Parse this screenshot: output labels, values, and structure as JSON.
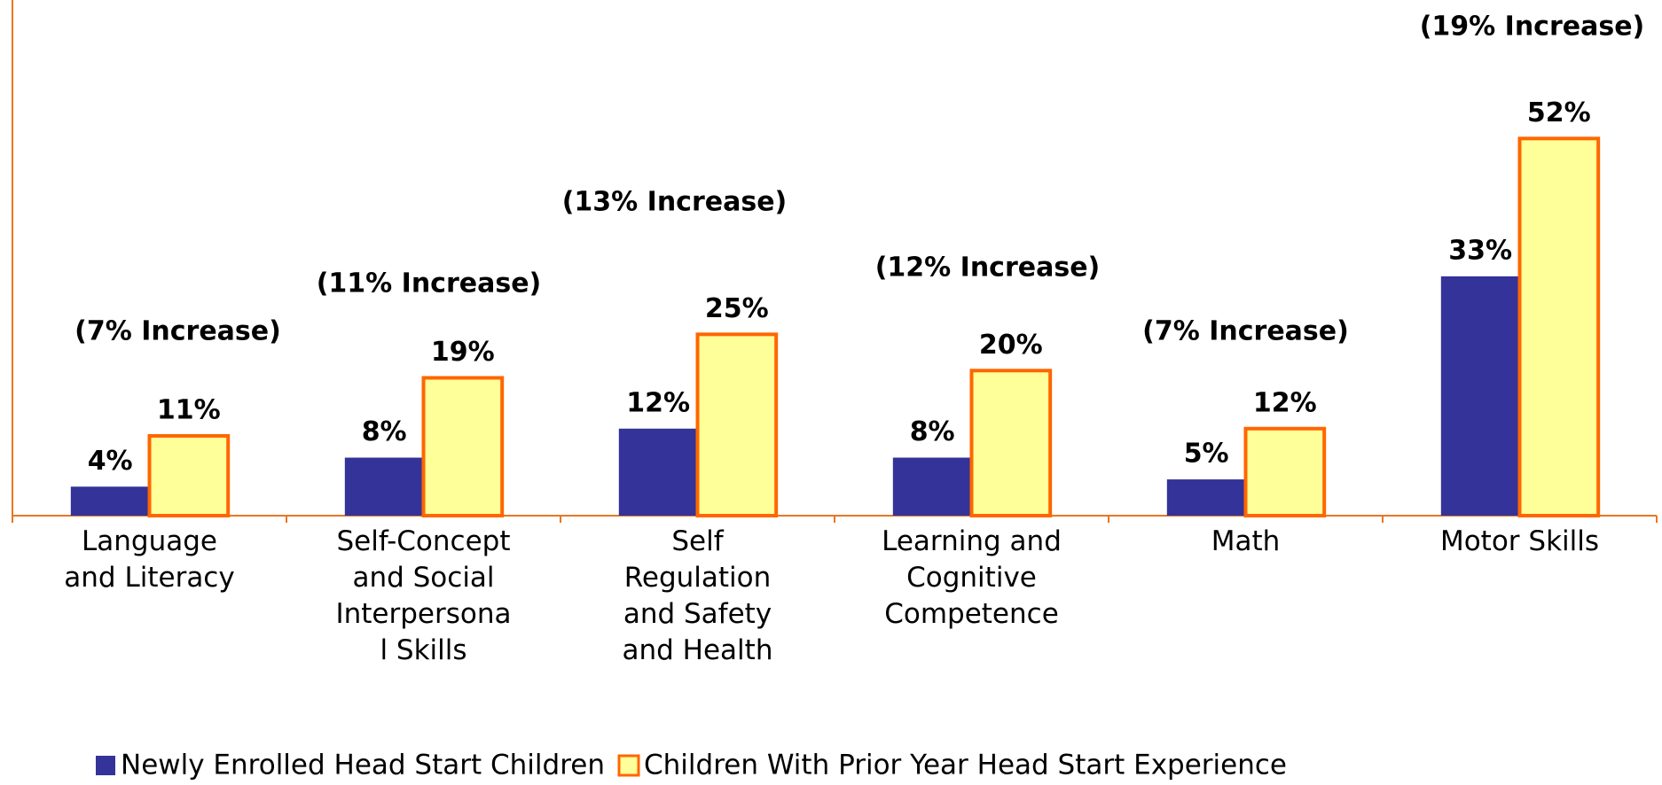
{
  "chart_data": {
    "type": "bar",
    "categories": [
      "Language\nand Literacy",
      "Self-Concept\nand Social\nInterpersona\nl Skills",
      "Self\nRegulation\nand Safety\nand Health",
      "Learning and\nCognitive\nCompetence",
      "Math",
      "Motor Skills"
    ],
    "series": [
      {
        "name": "Newly Enrolled Head Start Children",
        "color": "#333399",
        "values": [
          4,
          8,
          12,
          8,
          5,
          33
        ],
        "value_labels": [
          "4%",
          "8%",
          "12%",
          "8%",
          "5%",
          "33%"
        ]
      },
      {
        "name": "Children With Prior Year Head Start Experience",
        "color": "#FFFF99",
        "edge_color": "#FF6600",
        "values": [
          11,
          19,
          25,
          20,
          12,
          52
        ],
        "value_labels": [
          "11%",
          "19%",
          "25%",
          "20%",
          "12%",
          "52%"
        ]
      }
    ],
    "annotations": [
      "(7% Increase)",
      "(11% Increase)",
      "(13% Increase)",
      "(12% Increase)",
      "(7% Increase)",
      "(19% Increase)"
    ],
    "ylim": [
      0,
      70
    ],
    "axis_color": "#E87722",
    "legend": "bottom"
  }
}
